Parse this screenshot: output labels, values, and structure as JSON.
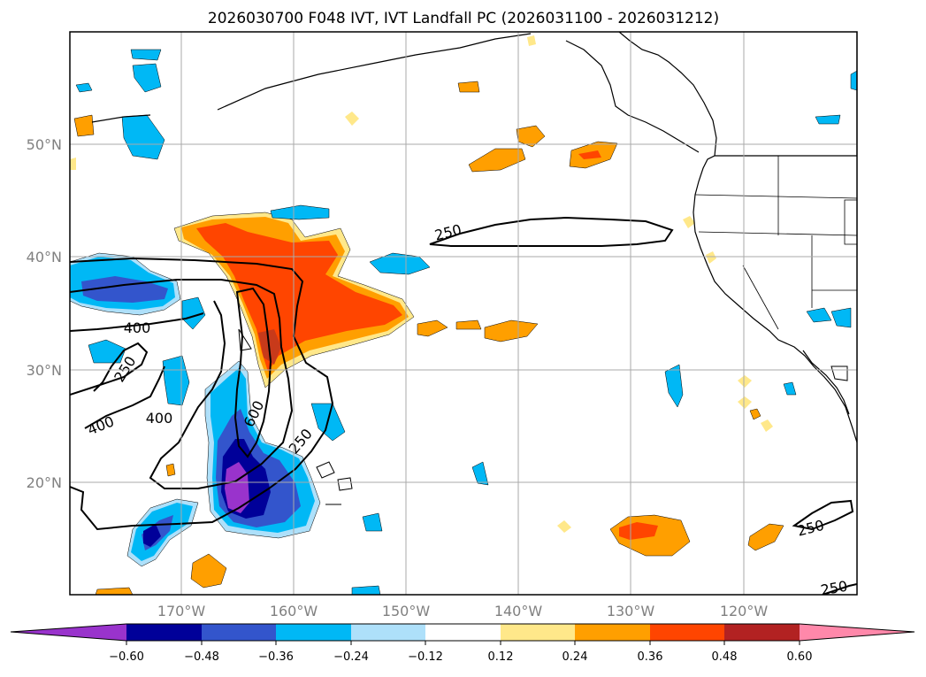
{
  "title": "2026030700 F048 IVT, IVT Landfall PC (2026031100 - 2026031212)",
  "lat_labels": [
    "50°N",
    "40°N",
    "30°N",
    "20°N"
  ],
  "lon_labels": [
    "170°W",
    "160°W",
    "150°W",
    "140°W",
    "130°W",
    "120°W"
  ],
  "colorbar": {
    "tick_labels": [
      "−0.60",
      "−0.48",
      "−0.36",
      "−0.24",
      "−0.12",
      "0.12",
      "0.24",
      "0.36",
      "0.48",
      "0.60"
    ],
    "colors": [
      "#9933cc",
      "#000099",
      "#3355cc",
      "#00b8f5",
      "#aee0fa",
      "#ffffff",
      "#ffe88a",
      "#ff9f00",
      "#ff4500",
      "#b22222",
      "#ff88aa"
    ]
  },
  "contour_labels": [
    "250",
    "400",
    "250",
    "400",
    "400",
    "600",
    "250",
    "250",
    "250"
  ],
  "colors": {
    "purple": "#9933cc",
    "navy": "#000099",
    "blue": "#3355cc",
    "sky": "#00b8f5",
    "light_blue": "#aee0fa",
    "pale_yellow": "#ffe88a",
    "orange": "#ff9f00",
    "red_orange": "#ff4500"
  }
}
